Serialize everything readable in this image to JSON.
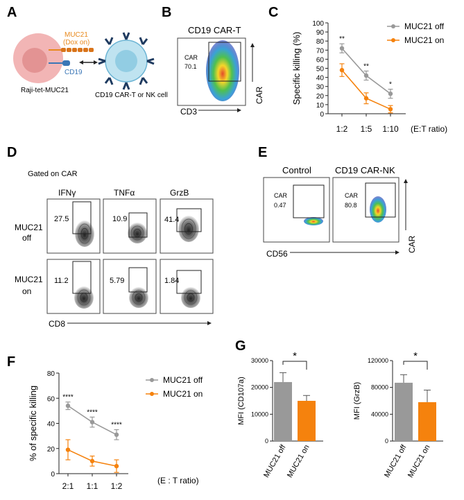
{
  "panels": {
    "a": {
      "letter": "A",
      "muc21_label": "MUC21",
      "dox_label": "(Dox on)",
      "cd19_label": "CD19",
      "raji_label": "Raji-tet-MUC21",
      "effector_label": "CD19 CAR-T or NK cell",
      "colors": {
        "orange": "#e8891d",
        "blue": "#3a76b6",
        "raji": "#f2b5b5",
        "car": "#a9d9ea"
      }
    },
    "b": {
      "letter": "B",
      "title": "CD19 CAR-T",
      "gate_label": "CAR",
      "gate_value": "70.1",
      "x_axis": "CD3",
      "y_axis": "CAR"
    },
    "c": {
      "letter": "C",
      "ratio_label": "(E:T ratio)"
    },
    "d": {
      "letter": "D",
      "gated_label": "Gated on CAR",
      "columns": [
        "IFNγ",
        "TNFα",
        "GrzB"
      ],
      "rows": [
        {
          "line1": "MUC21",
          "line2": "off",
          "values": [
            "27.5",
            "10.9",
            "41.4"
          ]
        },
        {
          "line1": "MUC21",
          "line2": "on",
          "values": [
            "11.2",
            "5.79",
            "1.84"
          ]
        }
      ],
      "x_axis": "CD8"
    },
    "e": {
      "letter": "E",
      "columns": [
        "Control",
        "CD19 CAR-NK"
      ],
      "gate_label": "CAR",
      "values": [
        "0.47",
        "80.8"
      ],
      "x_axis": "CD56",
      "y_axis": "CAR"
    },
    "f": {
      "letter": "F",
      "ratio_label": "(E : T ratio)"
    },
    "g": {
      "letter": "G"
    }
  },
  "colors": {
    "off": "#999999",
    "on": "#f5820d"
  },
  "chart_data": [
    {
      "id": "C",
      "type": "line",
      "title": "",
      "xlabel": "",
      "ylabel": "Specific killing (%)",
      "categories": [
        "1:2",
        "1:5",
        "1:10"
      ],
      "ylim": [
        0,
        100
      ],
      "yticks": [
        0,
        10,
        20,
        30,
        40,
        50,
        60,
        70,
        80,
        90,
        100
      ],
      "series": [
        {
          "name": "MUC21 off",
          "values": [
            72,
            42,
            22
          ],
          "errors": [
            5,
            5,
            5
          ]
        },
        {
          "name": "MUC21 on",
          "values": [
            48,
            17,
            5
          ],
          "errors": [
            7,
            6,
            4
          ]
        }
      ],
      "significance": [
        "**",
        "**",
        "*"
      ],
      "legend": "top-right"
    },
    {
      "id": "F",
      "type": "line",
      "title": "",
      "xlabel": "",
      "ylabel": "% of specific killing",
      "categories": [
        "2:1",
        "1:1",
        "1:2"
      ],
      "ylim": [
        0,
        80
      ],
      "yticks": [
        0,
        20,
        40,
        60,
        80
      ],
      "series": [
        {
          "name": "MUC21 off",
          "values": [
            54,
            41,
            31
          ],
          "errors": [
            3,
            4,
            4
          ]
        },
        {
          "name": "MUC21 on",
          "values": [
            19,
            10,
            6
          ],
          "errors": [
            8,
            4,
            5
          ]
        }
      ],
      "significance": [
        "****",
        "****",
        "****"
      ],
      "legend": "top-right"
    },
    {
      "id": "G1",
      "type": "bar",
      "ylabel": "MFI (CD107a)",
      "categories": [
        "MUC21 off",
        "MUC21 on"
      ],
      "values": [
        22000,
        15000
      ],
      "errors": [
        3500,
        2000
      ],
      "ylim": [
        0,
        30000
      ],
      "yticks": [
        "0",
        "10000",
        "20000",
        "30000"
      ],
      "significance": "*"
    },
    {
      "id": "G2",
      "type": "bar",
      "ylabel": "MFI (GrzB)",
      "categories": [
        "MUC21 off",
        "MUC21 on"
      ],
      "values": [
        87000,
        58000
      ],
      "errors": [
        12000,
        18000
      ],
      "ylim": [
        0,
        120000
      ],
      "yticks": [
        "0",
        "40000",
        "80000",
        "120000"
      ],
      "significance": "*"
    }
  ]
}
